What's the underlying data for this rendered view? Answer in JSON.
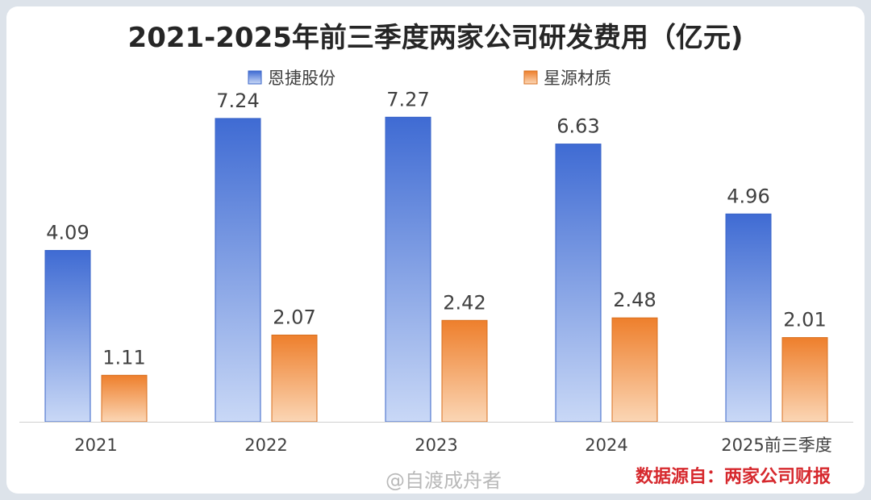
{
  "chart_data": {
    "type": "bar",
    "title": "2021-2025年前三季度两家公司研发费用（亿元)",
    "categories": [
      "2021",
      "2022",
      "2023",
      "2024",
      "2025前三季度"
    ],
    "series": [
      {
        "name": "恩捷股份",
        "values": [
          4.09,
          7.24,
          7.27,
          6.63,
          4.96
        ],
        "color": "#4a76d6"
      },
      {
        "name": "星源材质",
        "values": [
          1.11,
          2.07,
          2.42,
          2.48,
          2.01
        ],
        "color": "#ee8533"
      }
    ],
    "value_labels": [
      [
        "4.09",
        "7.24",
        "7.27",
        "6.63",
        "4.96"
      ],
      [
        "1.11",
        "2.07",
        "2.42",
        "2.48",
        "2.01"
      ]
    ],
    "ylim": [
      0,
      8.2
    ],
    "xlabel": "",
    "ylabel": "",
    "legend_position": "top",
    "grid": false
  },
  "footer": {
    "source": "数据源自：两家公司财报",
    "watermark": "@自渡成舟者"
  }
}
